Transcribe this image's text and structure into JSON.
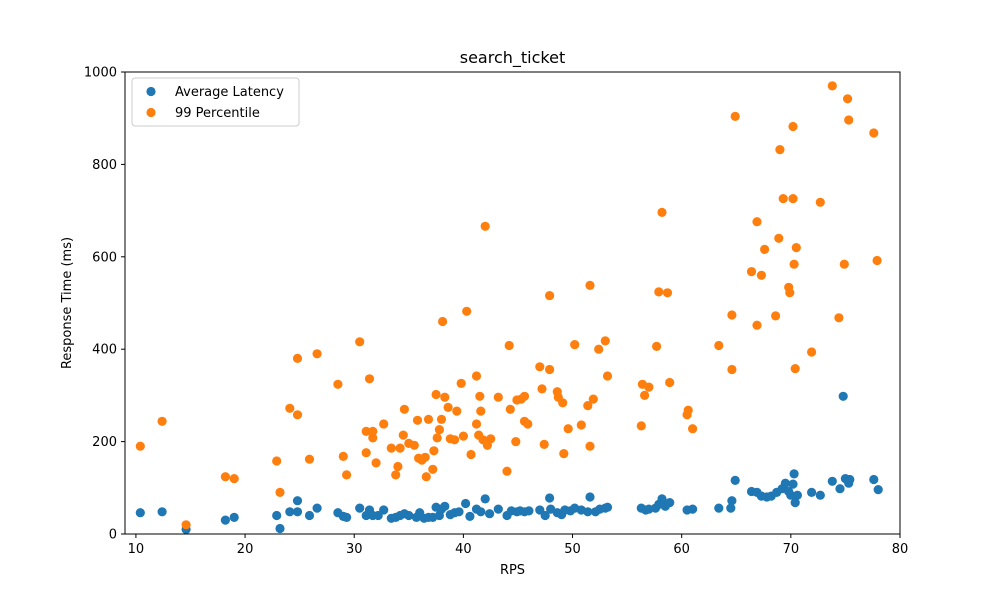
{
  "chart_data": {
    "type": "scatter",
    "title": "search_ticket",
    "xlabel": "RPS",
    "ylabel": "Response Time (ms)",
    "xlim": [
      9,
      80
    ],
    "ylim": [
      0,
      1000
    ],
    "xticks": [
      10,
      20,
      30,
      40,
      50,
      60,
      70,
      80
    ],
    "yticks": [
      0,
      200,
      400,
      600,
      800,
      1000
    ],
    "legend_position": "upper-left",
    "grid": false,
    "series": [
      {
        "name": "Average Latency",
        "color": "#1f77b4",
        "points": [
          [
            10.4,
            46
          ],
          [
            12.4,
            48
          ],
          [
            14.6,
            10
          ],
          [
            18.2,
            30
          ],
          [
            19.0,
            36
          ],
          [
            22.9,
            40
          ],
          [
            23.2,
            12
          ],
          [
            24.1,
            48
          ],
          [
            24.8,
            48
          ],
          [
            24.8,
            72
          ],
          [
            25.9,
            40
          ],
          [
            26.6,
            56
          ],
          [
            28.5,
            46
          ],
          [
            29.0,
            38
          ],
          [
            29.3,
            36
          ],
          [
            30.5,
            56
          ],
          [
            31.1,
            40
          ],
          [
            31.4,
            52
          ],
          [
            31.7,
            40
          ],
          [
            32.2,
            40
          ],
          [
            32.7,
            52
          ],
          [
            33.4,
            34
          ],
          [
            33.8,
            36
          ],
          [
            34.2,
            40
          ],
          [
            34.6,
            44
          ],
          [
            35.0,
            40
          ],
          [
            35.7,
            36
          ],
          [
            36.0,
            46
          ],
          [
            36.4,
            34
          ],
          [
            36.8,
            36
          ],
          [
            37.2,
            36
          ],
          [
            37.5,
            58
          ],
          [
            37.8,
            40
          ],
          [
            38.0,
            54
          ],
          [
            38.3,
            60
          ],
          [
            38.8,
            42
          ],
          [
            39.2,
            46
          ],
          [
            39.6,
            48
          ],
          [
            40.2,
            66
          ],
          [
            40.6,
            38
          ],
          [
            41.2,
            54
          ],
          [
            41.6,
            48
          ],
          [
            42.0,
            76
          ],
          [
            42.4,
            44
          ],
          [
            43.2,
            54
          ],
          [
            44.0,
            40
          ],
          [
            44.4,
            50
          ],
          [
            44.9,
            48
          ],
          [
            45.2,
            50
          ],
          [
            45.6,
            48
          ],
          [
            46.0,
            50
          ],
          [
            47.0,
            52
          ],
          [
            47.5,
            40
          ],
          [
            47.9,
            78
          ],
          [
            48.0,
            54
          ],
          [
            48.6,
            46
          ],
          [
            49.0,
            42
          ],
          [
            49.3,
            52
          ],
          [
            49.8,
            50
          ],
          [
            50.2,
            56
          ],
          [
            50.8,
            52
          ],
          [
            51.4,
            48
          ],
          [
            51.6,
            80
          ],
          [
            52.1,
            48
          ],
          [
            52.5,
            54
          ],
          [
            53.0,
            56
          ],
          [
            53.2,
            58
          ],
          [
            56.3,
            56
          ],
          [
            56.7,
            52
          ],
          [
            57.0,
            54
          ],
          [
            57.6,
            56
          ],
          [
            57.9,
            64
          ],
          [
            58.2,
            76
          ],
          [
            58.5,
            60
          ],
          [
            58.9,
            68
          ],
          [
            60.5,
            52
          ],
          [
            61.0,
            54
          ],
          [
            63.4,
            56
          ],
          [
            64.5,
            56
          ],
          [
            64.6,
            72
          ],
          [
            64.9,
            116
          ],
          [
            66.4,
            92
          ],
          [
            66.9,
            90
          ],
          [
            67.3,
            82
          ],
          [
            67.8,
            80
          ],
          [
            68.2,
            82
          ],
          [
            68.7,
            90
          ],
          [
            69.2,
            98
          ],
          [
            69.5,
            110
          ],
          [
            69.8,
            92
          ],
          [
            70.0,
            84
          ],
          [
            70.2,
            108
          ],
          [
            70.3,
            130
          ],
          [
            70.4,
            68
          ],
          [
            70.6,
            84
          ],
          [
            71.9,
            90
          ],
          [
            72.7,
            84
          ],
          [
            73.8,
            114
          ],
          [
            74.5,
            98
          ],
          [
            74.8,
            298
          ],
          [
            75.0,
            120
          ],
          [
            75.3,
            110
          ],
          [
            75.4,
            118
          ],
          [
            77.6,
            118
          ],
          [
            78.0,
            96
          ]
        ]
      },
      {
        "name": "99 Percentile",
        "color": "#ff7f0e",
        "points": [
          [
            10.4,
            190
          ],
          [
            12.4,
            244
          ],
          [
            14.6,
            20
          ],
          [
            18.2,
            124
          ],
          [
            19.0,
            120
          ],
          [
            22.9,
            158
          ],
          [
            23.2,
            90
          ],
          [
            24.1,
            272
          ],
          [
            24.8,
            258
          ],
          [
            24.8,
            380
          ],
          [
            25.9,
            162
          ],
          [
            26.6,
            390
          ],
          [
            28.5,
            324
          ],
          [
            29.0,
            168
          ],
          [
            29.3,
            128
          ],
          [
            30.5,
            416
          ],
          [
            31.1,
            176
          ],
          [
            31.1,
            222
          ],
          [
            31.4,
            336
          ],
          [
            31.7,
            222
          ],
          [
            31.7,
            208
          ],
          [
            32.0,
            154
          ],
          [
            32.7,
            238
          ],
          [
            33.4,
            186
          ],
          [
            33.8,
            128
          ],
          [
            34.0,
            146
          ],
          [
            34.2,
            186
          ],
          [
            34.5,
            214
          ],
          [
            34.6,
            270
          ],
          [
            35.0,
            196
          ],
          [
            35.5,
            192
          ],
          [
            35.8,
            246
          ],
          [
            35.9,
            164
          ],
          [
            36.2,
            160
          ],
          [
            36.5,
            166
          ],
          [
            36.6,
            124
          ],
          [
            36.8,
            248
          ],
          [
            37.2,
            140
          ],
          [
            37.3,
            180
          ],
          [
            37.5,
            302
          ],
          [
            37.6,
            208
          ],
          [
            37.8,
            226
          ],
          [
            38.0,
            248
          ],
          [
            38.1,
            460
          ],
          [
            38.3,
            296
          ],
          [
            38.6,
            274
          ],
          [
            38.8,
            206
          ],
          [
            39.2,
            204
          ],
          [
            39.4,
            266
          ],
          [
            39.8,
            326
          ],
          [
            40.0,
            212
          ],
          [
            40.3,
            482
          ],
          [
            40.7,
            172
          ],
          [
            41.2,
            342
          ],
          [
            41.2,
            238
          ],
          [
            41.4,
            214
          ],
          [
            41.5,
            298
          ],
          [
            41.6,
            266
          ],
          [
            41.8,
            204
          ],
          [
            42.0,
            666
          ],
          [
            42.2,
            192
          ],
          [
            42.5,
            206
          ],
          [
            43.2,
            296
          ],
          [
            44.0,
            136
          ],
          [
            44.2,
            408
          ],
          [
            44.3,
            270
          ],
          [
            44.8,
            200
          ],
          [
            44.9,
            290
          ],
          [
            45.3,
            292
          ],
          [
            45.6,
            298
          ],
          [
            45.6,
            244
          ],
          [
            45.9,
            238
          ],
          [
            47.0,
            362
          ],
          [
            47.2,
            314
          ],
          [
            47.4,
            194
          ],
          [
            47.9,
            356
          ],
          [
            47.9,
            516
          ],
          [
            48.6,
            308
          ],
          [
            48.7,
            296
          ],
          [
            49.1,
            284
          ],
          [
            49.2,
            174
          ],
          [
            49.6,
            228
          ],
          [
            50.2,
            410
          ],
          [
            50.8,
            236
          ],
          [
            51.4,
            278
          ],
          [
            51.6,
            538
          ],
          [
            51.6,
            190
          ],
          [
            51.9,
            292
          ],
          [
            52.4,
            400
          ],
          [
            53.0,
            418
          ],
          [
            53.2,
            342
          ],
          [
            56.3,
            234
          ],
          [
            56.4,
            324
          ],
          [
            56.6,
            300
          ],
          [
            57.0,
            318
          ],
          [
            57.7,
            406
          ],
          [
            57.9,
            524
          ],
          [
            58.2,
            696
          ],
          [
            58.7,
            522
          ],
          [
            58.9,
            328
          ],
          [
            60.5,
            258
          ],
          [
            60.6,
            268
          ],
          [
            61.0,
            228
          ],
          [
            63.4,
            408
          ],
          [
            64.6,
            356
          ],
          [
            64.6,
            474
          ],
          [
            64.9,
            904
          ],
          [
            66.4,
            568
          ],
          [
            66.9,
            676
          ],
          [
            66.9,
            452
          ],
          [
            67.3,
            560
          ],
          [
            67.6,
            616
          ],
          [
            68.6,
            472
          ],
          [
            68.9,
            640
          ],
          [
            69.0,
            832
          ],
          [
            69.3,
            726
          ],
          [
            69.8,
            534
          ],
          [
            69.9,
            522
          ],
          [
            70.2,
            726
          ],
          [
            70.2,
            882
          ],
          [
            70.3,
            584
          ],
          [
            70.4,
            358
          ],
          [
            70.5,
            620
          ],
          [
            71.9,
            394
          ],
          [
            72.7,
            718
          ],
          [
            73.8,
            970
          ],
          [
            74.4,
            468
          ],
          [
            74.9,
            584
          ],
          [
            75.2,
            942
          ],
          [
            75.3,
            896
          ],
          [
            77.6,
            868
          ],
          [
            77.9,
            592
          ]
        ]
      }
    ]
  }
}
